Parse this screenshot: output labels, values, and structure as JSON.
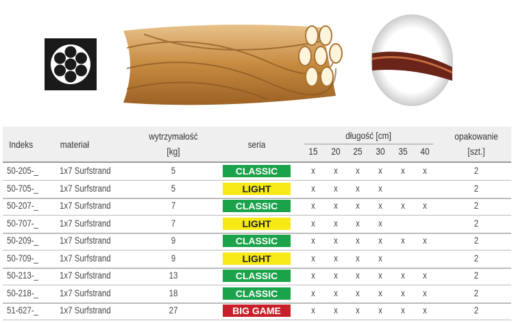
{
  "icons": {
    "cross_section": "seven-strand-cross-section-icon",
    "strand": "wire-strand-illustration",
    "photo": "wire-photo-circle"
  },
  "table": {
    "headers": {
      "index": "Indeks",
      "material": "materiał",
      "strength_1": "wytrzymałość",
      "strength_2": "[kg]",
      "series": "seria",
      "length": "długość [cm]",
      "package_1": "opakowanie",
      "package_2": "[szt.]"
    },
    "lengths": [
      "15",
      "20",
      "25",
      "30",
      "35",
      "40"
    ],
    "series_colors": {
      "CLASSIC": "#1aa34a",
      "LIGHT": "#f7e916",
      "BIG GAME": "#c8202a"
    },
    "rows": [
      {
        "index": "50-205-_",
        "material": "1x7 Surfstrand",
        "strength": "5",
        "series": "CLASSIC",
        "marks": [
          "x",
          "x",
          "x",
          "x",
          "x",
          "x"
        ],
        "package": "2"
      },
      {
        "index": "50-705-_",
        "material": "1x7 Surfstrand",
        "strength": "5",
        "series": "LIGHT",
        "marks": [
          "x",
          "x",
          "x",
          "x",
          "",
          ""
        ],
        "package": "2"
      },
      {
        "index": "50-207-_",
        "material": "1x7 Surfstrand",
        "strength": "7",
        "series": "CLASSIC",
        "marks": [
          "x",
          "x",
          "x",
          "x",
          "x",
          "x"
        ],
        "package": "2"
      },
      {
        "index": "50-707-_",
        "material": "1x7 Surfstrand",
        "strength": "7",
        "series": "LIGHT",
        "marks": [
          "x",
          "x",
          "x",
          "x",
          "",
          ""
        ],
        "package": "2"
      },
      {
        "index": "50-209-_",
        "material": "1x7 Surfstrand",
        "strength": "9",
        "series": "CLASSIC",
        "marks": [
          "x",
          "x",
          "x",
          "x",
          "x",
          "x"
        ],
        "package": "2"
      },
      {
        "index": "50-709-_",
        "material": "1x7 Surfstrand",
        "strength": "9",
        "series": "LIGHT",
        "marks": [
          "x",
          "x",
          "x",
          "x",
          "",
          ""
        ],
        "package": "2"
      },
      {
        "index": "50-213-_",
        "material": "1x7 Surfstrand",
        "strength": "13",
        "series": "CLASSIC",
        "marks": [
          "x",
          "x",
          "x",
          "x",
          "x",
          "x"
        ],
        "package": "2"
      },
      {
        "index": "50-218-_",
        "material": "1x7 Surfstrand",
        "strength": "18",
        "series": "CLASSIC",
        "marks": [
          "x",
          "x",
          "x",
          "x",
          "x",
          "x"
        ],
        "package": "2"
      },
      {
        "index": "51-627-_",
        "material": "1x7 Surfstrand",
        "strength": "27",
        "series": "BIG GAME",
        "marks": [
          "x",
          "x",
          "x",
          "x",
          "x",
          "x"
        ],
        "package": "2"
      }
    ]
  }
}
